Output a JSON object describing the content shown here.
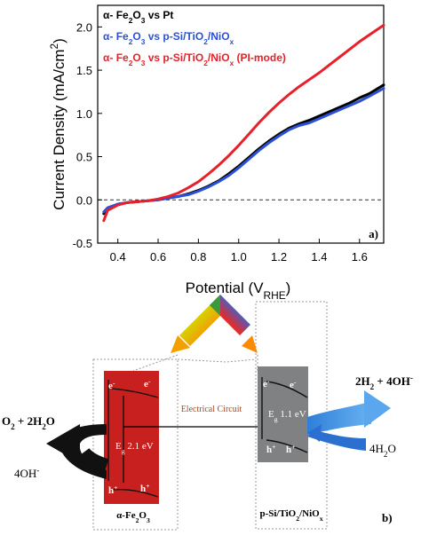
{
  "chart_data": {
    "type": "line",
    "panel_label": "a)",
    "xlabel": "Potential (V",
    "xlabel_sub": "RHE",
    "xlabel_close": ")",
    "ylabel": "Current Density (mA/cm",
    "ylabel_sup": "2",
    "ylabel_close": ")",
    "xlim": [
      0.3,
      1.72
    ],
    "ylim": [
      -0.5,
      2.25
    ],
    "xticks": [
      "0.4",
      "0.6",
      "0.8",
      "1.0",
      "1.2",
      "1.4",
      "1.6"
    ],
    "yticks": [
      "-0.5",
      "0.0",
      "0.5",
      "1.0",
      "1.5",
      "2.0"
    ],
    "zero_line": true,
    "series": [
      {
        "legend_parts": [
          "α- Fe",
          "2",
          "O",
          "3",
          " vs Pt"
        ],
        "color": "#000000",
        "x": [
          0.33,
          0.35,
          0.4,
          0.45,
          0.5,
          0.55,
          0.6,
          0.65,
          0.7,
          0.75,
          0.8,
          0.85,
          0.9,
          0.95,
          1.0,
          1.05,
          1.1,
          1.15,
          1.2,
          1.25,
          1.3,
          1.35,
          1.4,
          1.45,
          1.5,
          1.55,
          1.6,
          1.65,
          1.72
        ],
        "y": [
          -0.16,
          -0.1,
          -0.05,
          -0.03,
          -0.02,
          -0.01,
          0.0,
          0.02,
          0.04,
          0.07,
          0.11,
          0.16,
          0.22,
          0.3,
          0.39,
          0.49,
          0.59,
          0.68,
          0.76,
          0.83,
          0.88,
          0.92,
          0.97,
          1.02,
          1.07,
          1.12,
          1.18,
          1.23,
          1.33
        ]
      },
      {
        "legend_parts": [
          "α- Fe",
          "2",
          "O",
          "3",
          " vs p-Si/TiO",
          "2",
          "/NiO",
          "x",
          ""
        ],
        "color": "#2b50d6",
        "x": [
          0.33,
          0.35,
          0.4,
          0.45,
          0.5,
          0.55,
          0.6,
          0.65,
          0.7,
          0.75,
          0.8,
          0.85,
          0.9,
          0.95,
          1.0,
          1.05,
          1.1,
          1.15,
          1.2,
          1.25,
          1.3,
          1.35,
          1.4,
          1.45,
          1.5,
          1.55,
          1.6,
          1.65,
          1.72
        ],
        "y": [
          -0.14,
          -0.09,
          -0.05,
          -0.03,
          -0.02,
          -0.01,
          0.0,
          0.02,
          0.04,
          0.06,
          0.1,
          0.15,
          0.21,
          0.28,
          0.37,
          0.47,
          0.57,
          0.66,
          0.74,
          0.81,
          0.86,
          0.89,
          0.94,
          0.99,
          1.04,
          1.09,
          1.14,
          1.2,
          1.29
        ]
      },
      {
        "legend_parts": [
          "α- Fe",
          "2",
          "O",
          "3",
          " vs p-Si/TiO",
          "2",
          "/NiO",
          "x",
          " (PI-mode)"
        ],
        "color": "#e8202a",
        "x": [
          0.33,
          0.35,
          0.4,
          0.45,
          0.5,
          0.55,
          0.6,
          0.65,
          0.7,
          0.75,
          0.8,
          0.85,
          0.9,
          0.95,
          1.0,
          1.05,
          1.1,
          1.15,
          1.2,
          1.25,
          1.3,
          1.35,
          1.4,
          1.45,
          1.5,
          1.55,
          1.6,
          1.65,
          1.72
        ],
        "y": [
          -0.24,
          -0.12,
          -0.06,
          -0.03,
          -0.02,
          -0.01,
          0.01,
          0.04,
          0.08,
          0.14,
          0.21,
          0.3,
          0.4,
          0.51,
          0.63,
          0.76,
          0.89,
          1.01,
          1.12,
          1.22,
          1.31,
          1.39,
          1.47,
          1.56,
          1.65,
          1.74,
          1.83,
          1.91,
          2.02
        ]
      }
    ]
  },
  "diagram": {
    "panel_label": "b)",
    "left_label": [
      "α-Fe",
      "2",
      "O",
      "3"
    ],
    "right_label": [
      "p-Si/TiO",
      "2",
      "/NiO",
      "x"
    ],
    "circuit_label": "Electrical Circuit",
    "left_gap": [
      "E",
      "g",
      " 2.1 eV"
    ],
    "right_gap": [
      "E",
      "g",
      " 1.1 eV"
    ],
    "electron": "e",
    "electron_sup": "-",
    "hole": "h",
    "hole_sup": "+",
    "oxidation_product": [
      "O",
      "2",
      " + 2H",
      "2",
      "O"
    ],
    "oxidation_reactant": [
      "4OH",
      "-"
    ],
    "reduction_product": [
      "2H",
      "2",
      " + 4OH",
      "-"
    ],
    "reduction_reactant": [
      "4H",
      "2",
      "O"
    ],
    "colors": {
      "hematite": "#c8201e",
      "silicon": "#7f8182",
      "oxidation_arrow": "#111111",
      "reduction_arrow": "#3d8ee0"
    }
  }
}
